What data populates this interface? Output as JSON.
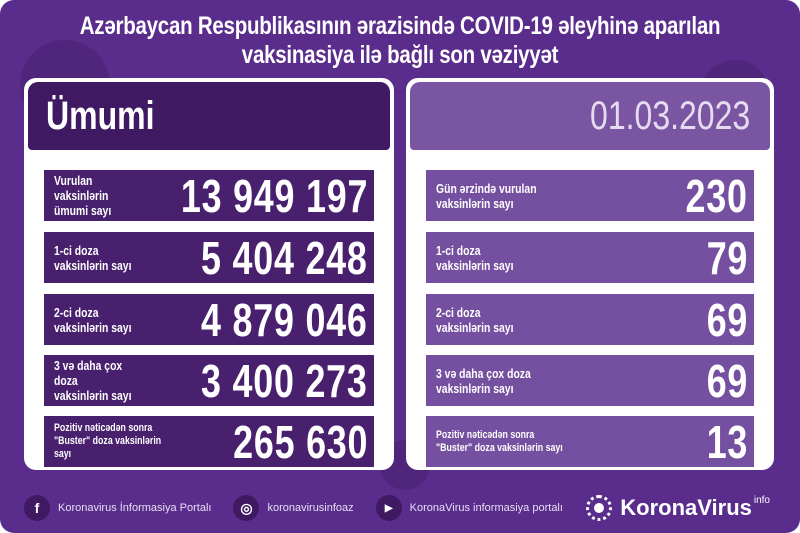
{
  "title_line1": "Azərbaycan Respublikasının ərazisində COVID-19 əleyhinə aparılan",
  "title_line2": "vaksinasiya ilə bağlı son vəziyyət",
  "colors": {
    "background": "#5a2d8c",
    "left_rows": "#48206e",
    "right_rows": "#7550a0"
  },
  "left": {
    "header": "Ümumi",
    "rows": [
      {
        "label": "Vurulan vaksinlərin\nümumi sayı",
        "value": "13 949 197"
      },
      {
        "label": "1-ci doza\nvaksinlərin sayı",
        "value": "5 404 248"
      },
      {
        "label": "2-ci doza\nvaksinlərin sayı",
        "value": "4 879 046"
      },
      {
        "label": "3 və daha çox doza\nvaksinlərin sayı",
        "value": "3 400 273"
      },
      {
        "label": "Pozitiv nəticədən sonra\n\"Buster\" doza vaksinlərin sayı",
        "value": "265 630"
      }
    ]
  },
  "right": {
    "header": "01.03.2023",
    "rows": [
      {
        "label": "Gün ərzində vurulan\nvaksinlərin sayı",
        "value": "230"
      },
      {
        "label": "1-ci doza\nvaksinlərin sayı",
        "value": "79"
      },
      {
        "label": "2-ci doza\nvaksinlərin sayı",
        "value": "69"
      },
      {
        "label": "3 və daha çox doza\nvaksinlərin sayı",
        "value": "69"
      },
      {
        "label": "Pozitiv nəticədən sonra\n\"Buster\" doza vaksinlərin sayı",
        "value": "13"
      }
    ]
  },
  "footer": {
    "facebook": "Koronavirus İnformasiya Portalı",
    "instagram": "koronavirusinfoaz",
    "youtube": "KoronaVirus informasiya portalı",
    "brand": "KoronaVirus",
    "brand_sup": "info"
  }
}
